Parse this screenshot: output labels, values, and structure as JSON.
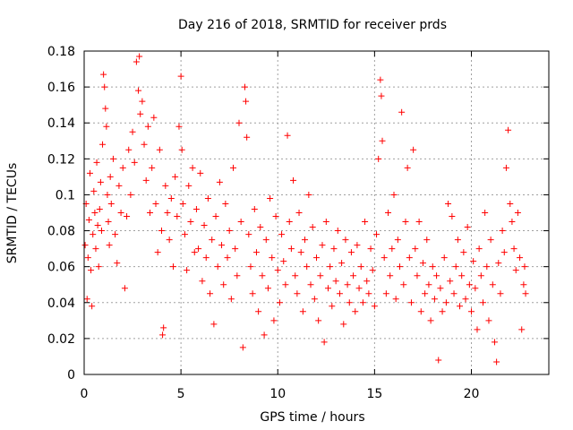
{
  "chart_data": {
    "type": "scatter",
    "title": "Day 216 of 2018, SRMTID for receiver prds",
    "xlabel": "GPS time / hours",
    "ylabel": "SRMTID / TECUs",
    "xlim": [
      0,
      24
    ],
    "ylim": [
      0,
      0.18
    ],
    "xticks": [
      0,
      5,
      10,
      15,
      20
    ],
    "xtick_labels": [
      "0",
      "5",
      "10",
      "15",
      "20"
    ],
    "yticks": [
      0,
      0.02,
      0.04,
      0.06,
      0.08,
      0.1,
      0.12,
      0.14,
      0.16,
      0.18
    ],
    "ytick_labels": [
      "0",
      "0.02",
      "0.04",
      "0.06",
      "0.08",
      "0.1",
      "0.12",
      "0.14",
      "0.16",
      "0.18"
    ],
    "grid": true,
    "marker": "+",
    "series": [
      {
        "name": "SRMTID",
        "color": "#ff0000",
        "points": [
          [
            0.05,
            0.072
          ],
          [
            0.1,
            0.095
          ],
          [
            0.15,
            0.042
          ],
          [
            0.2,
            0.065
          ],
          [
            0.25,
            0.086
          ],
          [
            0.3,
            0.112
          ],
          [
            0.35,
            0.058
          ],
          [
            0.4,
            0.038
          ],
          [
            0.45,
            0.078
          ],
          [
            0.5,
            0.102
          ],
          [
            0.55,
            0.09
          ],
          [
            0.6,
            0.07
          ],
          [
            0.65,
            0.118
          ],
          [
            0.7,
            0.083
          ],
          [
            0.75,
            0.06
          ],
          [
            0.8,
            0.092
          ],
          [
            0.85,
            0.107
          ],
          [
            0.9,
            0.08
          ],
          [
            0.95,
            0.128
          ],
          [
            1.0,
            0.167
          ],
          [
            1.05,
            0.16
          ],
          [
            1.1,
            0.148
          ],
          [
            1.15,
            0.138
          ],
          [
            1.2,
            0.1
          ],
          [
            1.25,
            0.085
          ],
          [
            1.3,
            0.072
          ],
          [
            1.35,
            0.11
          ],
          [
            1.4,
            0.095
          ],
          [
            1.5,
            0.12
          ],
          [
            1.6,
            0.078
          ],
          [
            1.7,
            0.062
          ],
          [
            1.8,
            0.105
          ],
          [
            1.9,
            0.09
          ],
          [
            2.0,
            0.115
          ],
          [
            2.1,
            0.048
          ],
          [
            2.2,
            0.088
          ],
          [
            2.3,
            0.125
          ],
          [
            2.4,
            0.1
          ],
          [
            2.5,
            0.135
          ],
          [
            2.6,
            0.118
          ],
          [
            2.7,
            0.174
          ],
          [
            2.8,
            0.158
          ],
          [
            2.85,
            0.177
          ],
          [
            2.9,
            0.145
          ],
          [
            3.0,
            0.152
          ],
          [
            3.1,
            0.128
          ],
          [
            3.2,
            0.108
          ],
          [
            3.3,
            0.138
          ],
          [
            3.4,
            0.09
          ],
          [
            3.5,
            0.115
          ],
          [
            3.6,
            0.143
          ],
          [
            3.7,
            0.095
          ],
          [
            3.8,
            0.068
          ],
          [
            3.9,
            0.125
          ],
          [
            4.0,
            0.08
          ],
          [
            4.05,
            0.022
          ],
          [
            4.1,
            0.026
          ],
          [
            4.2,
            0.105
          ],
          [
            4.3,
            0.09
          ],
          [
            4.4,
            0.075
          ],
          [
            4.5,
            0.098
          ],
          [
            4.6,
            0.06
          ],
          [
            4.7,
            0.11
          ],
          [
            4.8,
            0.088
          ],
          [
            4.9,
            0.138
          ],
          [
            5.0,
            0.166
          ],
          [
            5.05,
            0.125
          ],
          [
            5.1,
            0.095
          ],
          [
            5.2,
            0.078
          ],
          [
            5.3,
            0.058
          ],
          [
            5.4,
            0.105
          ],
          [
            5.5,
            0.085
          ],
          [
            5.6,
            0.115
          ],
          [
            5.7,
            0.068
          ],
          [
            5.8,
            0.092
          ],
          [
            5.9,
            0.07
          ],
          [
            6.0,
            0.112
          ],
          [
            6.1,
            0.052
          ],
          [
            6.2,
            0.083
          ],
          [
            6.3,
            0.065
          ],
          [
            6.4,
            0.098
          ],
          [
            6.5,
            0.045
          ],
          [
            6.6,
            0.075
          ],
          [
            6.7,
            0.028
          ],
          [
            6.8,
            0.088
          ],
          [
            6.9,
            0.06
          ],
          [
            7.0,
            0.107
          ],
          [
            7.1,
            0.072
          ],
          [
            7.2,
            0.05
          ],
          [
            7.3,
            0.095
          ],
          [
            7.4,
            0.065
          ],
          [
            7.5,
            0.08
          ],
          [
            7.6,
            0.042
          ],
          [
            7.7,
            0.115
          ],
          [
            7.8,
            0.07
          ],
          [
            7.9,
            0.055
          ],
          [
            8.0,
            0.14
          ],
          [
            8.1,
            0.085
          ],
          [
            8.2,
            0.015
          ],
          [
            8.3,
            0.16
          ],
          [
            8.35,
            0.152
          ],
          [
            8.4,
            0.132
          ],
          [
            8.5,
            0.078
          ],
          [
            8.6,
            0.06
          ],
          [
            8.7,
            0.045
          ],
          [
            8.8,
            0.092
          ],
          [
            8.9,
            0.068
          ],
          [
            9.0,
            0.035
          ],
          [
            9.1,
            0.082
          ],
          [
            9.2,
            0.055
          ],
          [
            9.3,
            0.022
          ],
          [
            9.4,
            0.075
          ],
          [
            9.5,
            0.048
          ],
          [
            9.6,
            0.098
          ],
          [
            9.7,
            0.065
          ],
          [
            9.8,
            0.03
          ],
          [
            9.9,
            0.088
          ],
          [
            10.0,
            0.058
          ],
          [
            10.1,
            0.04
          ],
          [
            10.2,
            0.078
          ],
          [
            10.3,
            0.063
          ],
          [
            10.4,
            0.05
          ],
          [
            10.5,
            0.133
          ],
          [
            10.6,
            0.085
          ],
          [
            10.7,
            0.07
          ],
          [
            10.8,
            0.108
          ],
          [
            10.9,
            0.055
          ],
          [
            11.0,
            0.045
          ],
          [
            11.1,
            0.09
          ],
          [
            11.2,
            0.068
          ],
          [
            11.3,
            0.035
          ],
          [
            11.4,
            0.075
          ],
          [
            11.5,
            0.06
          ],
          [
            11.6,
            0.1
          ],
          [
            11.7,
            0.05
          ],
          [
            11.8,
            0.082
          ],
          [
            11.9,
            0.042
          ],
          [
            12.0,
            0.065
          ],
          [
            12.1,
            0.03
          ],
          [
            12.2,
            0.055
          ],
          [
            12.3,
            0.072
          ],
          [
            12.4,
            0.018
          ],
          [
            12.5,
            0.085
          ],
          [
            12.6,
            0.048
          ],
          [
            12.7,
            0.06
          ],
          [
            12.8,
            0.038
          ],
          [
            12.9,
            0.07
          ],
          [
            13.0,
            0.052
          ],
          [
            13.1,
            0.08
          ],
          [
            13.2,
            0.045
          ],
          [
            13.3,
            0.062
          ],
          [
            13.4,
            0.028
          ],
          [
            13.5,
            0.075
          ],
          [
            13.6,
            0.05
          ],
          [
            13.7,
            0.04
          ],
          [
            13.8,
            0.068
          ],
          [
            13.9,
            0.055
          ],
          [
            14.0,
            0.035
          ],
          [
            14.1,
            0.072
          ],
          [
            14.2,
            0.048
          ],
          [
            14.3,
            0.06
          ],
          [
            14.4,
            0.04
          ],
          [
            14.5,
            0.085
          ],
          [
            14.6,
            0.052
          ],
          [
            14.7,
            0.045
          ],
          [
            14.8,
            0.07
          ],
          [
            14.9,
            0.058
          ],
          [
            15.0,
            0.038
          ],
          [
            15.1,
            0.078
          ],
          [
            15.2,
            0.12
          ],
          [
            15.3,
            0.164
          ],
          [
            15.35,
            0.155
          ],
          [
            15.4,
            0.13
          ],
          [
            15.5,
            0.065
          ],
          [
            15.6,
            0.045
          ],
          [
            15.7,
            0.09
          ],
          [
            15.8,
            0.055
          ],
          [
            15.9,
            0.07
          ],
          [
            16.0,
            0.1
          ],
          [
            16.1,
            0.042
          ],
          [
            16.2,
            0.075
          ],
          [
            16.3,
            0.06
          ],
          [
            16.4,
            0.146
          ],
          [
            16.5,
            0.05
          ],
          [
            16.6,
            0.085
          ],
          [
            16.7,
            0.115
          ],
          [
            16.8,
            0.065
          ],
          [
            16.9,
            0.04
          ],
          [
            17.0,
            0.125
          ],
          [
            17.1,
            0.07
          ],
          [
            17.2,
            0.055
          ],
          [
            17.3,
            0.085
          ],
          [
            17.4,
            0.035
          ],
          [
            17.5,
            0.062
          ],
          [
            17.6,
            0.045
          ],
          [
            17.7,
            0.075
          ],
          [
            17.8,
            0.05
          ],
          [
            17.9,
            0.03
          ],
          [
            18.0,
            0.06
          ],
          [
            18.1,
            0.042
          ],
          [
            18.2,
            0.055
          ],
          [
            18.3,
            0.008
          ],
          [
            18.4,
            0.048
          ],
          [
            18.5,
            0.035
          ],
          [
            18.6,
            0.065
          ],
          [
            18.7,
            0.04
          ],
          [
            18.8,
            0.095
          ],
          [
            18.9,
            0.052
          ],
          [
            19.0,
            0.088
          ],
          [
            19.1,
            0.045
          ],
          [
            19.2,
            0.06
          ],
          [
            19.3,
            0.075
          ],
          [
            19.4,
            0.038
          ],
          [
            19.5,
            0.055
          ],
          [
            19.6,
            0.068
          ],
          [
            19.7,
            0.042
          ],
          [
            19.8,
            0.082
          ],
          [
            19.9,
            0.05
          ],
          [
            20.0,
            0.035
          ],
          [
            20.1,
            0.063
          ],
          [
            20.2,
            0.048
          ],
          [
            20.3,
            0.025
          ],
          [
            20.4,
            0.07
          ],
          [
            20.5,
            0.055
          ],
          [
            20.6,
            0.04
          ],
          [
            20.7,
            0.09
          ],
          [
            20.8,
            0.06
          ],
          [
            20.9,
            0.03
          ],
          [
            21.0,
            0.075
          ],
          [
            21.1,
            0.05
          ],
          [
            21.2,
            0.018
          ],
          [
            21.3,
            0.007
          ],
          [
            21.4,
            0.062
          ],
          [
            21.5,
            0.045
          ],
          [
            21.6,
            0.08
          ],
          [
            21.7,
            0.068
          ],
          [
            21.8,
            0.115
          ],
          [
            21.9,
            0.136
          ],
          [
            22.0,
            0.095
          ],
          [
            22.1,
            0.085
          ],
          [
            22.2,
            0.07
          ],
          [
            22.3,
            0.058
          ],
          [
            22.4,
            0.09
          ],
          [
            22.5,
            0.065
          ],
          [
            22.6,
            0.025
          ],
          [
            22.7,
            0.05
          ],
          [
            22.75,
            0.06
          ],
          [
            22.8,
            0.045
          ]
        ]
      }
    ]
  }
}
